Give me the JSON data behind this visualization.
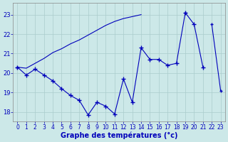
{
  "background_color": "#cce8e8",
  "grid_color": "#aacccc",
  "line_color": "#0000bb",
  "hours": [
    0,
    1,
    2,
    3,
    4,
    5,
    6,
    7,
    8,
    9,
    10,
    11,
    12,
    13,
    14,
    15,
    16,
    17,
    18,
    19,
    20,
    21,
    22,
    23
  ],
  "line_jagged": [
    20.3,
    19.9,
    20.2,
    19.9,
    19.6,
    19.2,
    18.85,
    18.6,
    17.85,
    18.5,
    18.3,
    17.9,
    19.7,
    18.5,
    21.3,
    20.7,
    20.7,
    20.4,
    20.5,
    23.1,
    22.5,
    20.3,
    null,
    null
  ],
  "line_flat": [
    20.3,
    null,
    null,
    null,
    null,
    null,
    null,
    null,
    null,
    null,
    null,
    null,
    null,
    null,
    null,
    null,
    null,
    null,
    null,
    23.1,
    null,
    null,
    22.5,
    19.1
  ],
  "line_rising": [
    20.3,
    20.25,
    20.5,
    20.75,
    21.05,
    21.25,
    21.5,
    21.7,
    21.95,
    22.2,
    22.45,
    22.65,
    22.8,
    22.9,
    23.0,
    null,
    null,
    null,
    null,
    23.1,
    null,
    null,
    null,
    null
  ],
  "xlabel": "Graphe des températures (°c)",
  "ylim": [
    17.5,
    23.6
  ],
  "yticks": [
    18,
    19,
    20,
    21,
    22,
    23
  ],
  "xlim": [
    -0.5,
    23.5
  ],
  "xticks": [
    0,
    1,
    2,
    3,
    4,
    5,
    6,
    7,
    8,
    9,
    10,
    11,
    12,
    13,
    14,
    15,
    16,
    17,
    18,
    19,
    20,
    21,
    22,
    23
  ]
}
